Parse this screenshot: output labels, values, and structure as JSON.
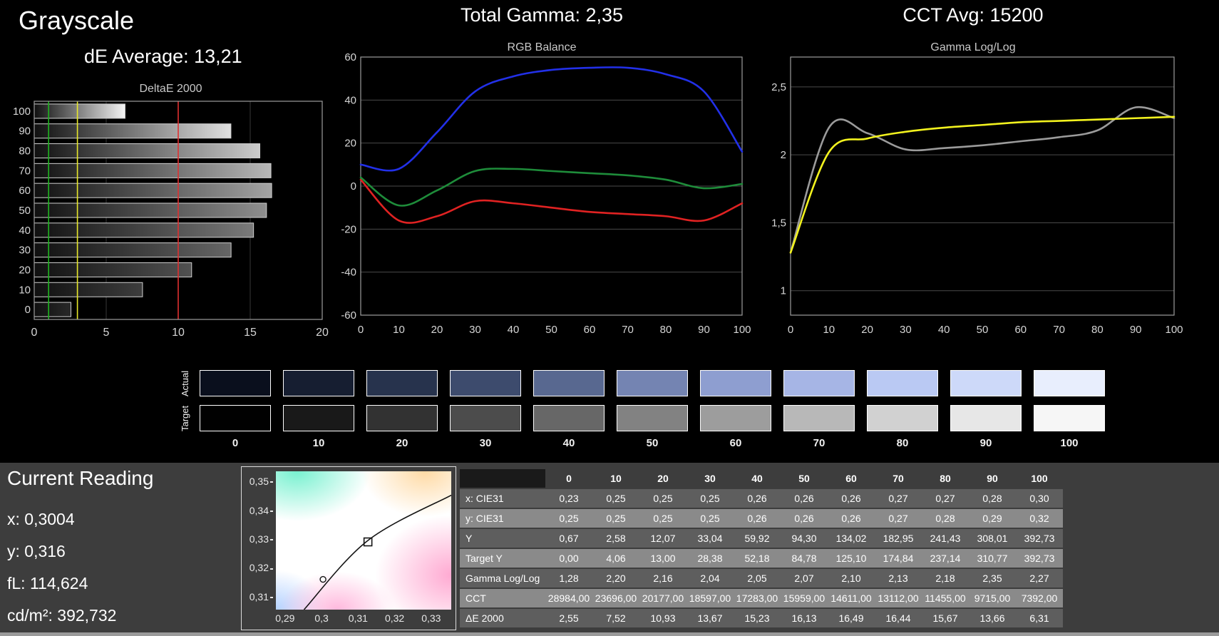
{
  "header": {
    "title": "Grayscale",
    "de_average": "dE Average: 13,21",
    "total_gamma": "Total Gamma: 2,35",
    "cct_avg": "CCT Avg: 15200"
  },
  "chart_data": [
    {
      "id": "deltae",
      "type": "bar",
      "orientation": "horizontal",
      "title": "DeltaE 2000",
      "categories": [
        100,
        90,
        80,
        70,
        60,
        50,
        40,
        30,
        20,
        10,
        0
      ],
      "values": [
        6.31,
        13.66,
        15.67,
        16.44,
        16.49,
        16.13,
        15.23,
        13.67,
        10.93,
        7.52,
        2.55
      ],
      "xlim": [
        0,
        20
      ],
      "xticks": [
        0,
        5,
        10,
        15,
        20
      ],
      "reference_lines": [
        {
          "x": 1,
          "color": "#1fb41f"
        },
        {
          "x": 3,
          "color": "#e8e82a"
        },
        {
          "x": 10,
          "color": "#e03030"
        }
      ]
    },
    {
      "id": "rgb",
      "type": "line",
      "title": "RGB Balance",
      "x": [
        0,
        10,
        20,
        30,
        40,
        50,
        60,
        70,
        80,
        90,
        100
      ],
      "ylim": [
        -60,
        60
      ],
      "yticks": [
        -60,
        -40,
        -20,
        0,
        20,
        40,
        60
      ],
      "series": [
        {
          "name": "red",
          "color": "#e02222",
          "values": [
            3,
            -16,
            -14,
            -7,
            -8,
            -10,
            -12,
            -13,
            -14,
            -16,
            -8
          ]
        },
        {
          "name": "green",
          "color": "#1e8c3a",
          "values": [
            4,
            -9,
            -2,
            7,
            8,
            7,
            6,
            5,
            3,
            -1,
            1
          ]
        },
        {
          "name": "blue",
          "color": "#2230e8",
          "values": [
            10,
            8,
            25,
            44,
            51,
            54,
            55,
            55,
            52,
            44,
            16
          ]
        }
      ]
    },
    {
      "id": "gamma",
      "type": "line",
      "title": "Gamma Log/Log",
      "x": [
        0,
        10,
        20,
        30,
        40,
        50,
        60,
        70,
        80,
        90,
        100
      ],
      "ylim": [
        0.82,
        2.72
      ],
      "yticks": [
        1,
        1.5,
        2,
        2.5
      ],
      "ytick_labels": [
        "1",
        "1,5",
        "2",
        "2,5"
      ],
      "series": [
        {
          "name": "measured",
          "color": "#9b9b9b",
          "values": [
            1.28,
            2.2,
            2.16,
            2.04,
            2.05,
            2.07,
            2.1,
            2.13,
            2.18,
            2.35,
            2.27
          ]
        },
        {
          "name": "target",
          "color": "#f2f21e",
          "values": [
            1.28,
            2.02,
            2.12,
            2.17,
            2.2,
            2.22,
            2.24,
            2.25,
            2.26,
            2.27,
            2.28
          ]
        }
      ]
    },
    {
      "id": "cie",
      "type": "scatter",
      "title": "CIE chromaticity",
      "xlim": [
        0.2875,
        0.3355
      ],
      "ylim": [
        0.3055,
        0.3535
      ],
      "xticks": [
        0.29,
        0.3,
        0.31,
        0.32,
        0.33
      ],
      "xtick_labels": [
        "0,29",
        "0,3",
        "0,31",
        "0,32",
        "0,33"
      ],
      "yticks": [
        0.31,
        0.32,
        0.33,
        0.34,
        0.35
      ],
      "ytick_labels": [
        "0,31",
        "0,32",
        "0,33",
        "0,34",
        "0,35"
      ],
      "locus": [
        [
          0.2952,
          0.3055
        ],
        [
          0.3127,
          0.3295
        ],
        [
          0.3355,
          0.3452
        ]
      ],
      "points": [
        {
          "shape": "square",
          "x": 0.3127,
          "y": 0.329,
          "label": "target white point"
        },
        {
          "shape": "circle",
          "x": 0.3004,
          "y": 0.316,
          "label": "measured white point"
        }
      ]
    }
  ],
  "swatches": {
    "row_labels": [
      "Actual",
      "Target"
    ],
    "labels": [
      "0",
      "10",
      "20",
      "30",
      "40",
      "50",
      "60",
      "70",
      "80",
      "90",
      "100"
    ],
    "actual_colors": [
      "#0a0f1d",
      "#161e31",
      "#27334d",
      "#3d4b6d",
      "#586890",
      "#7484b2",
      "#8e9ed0",
      "#a6b5e5",
      "#bac9f3",
      "#cdd9f9",
      "#e8eefd"
    ],
    "target_colors": [
      "#010101",
      "#191919",
      "#323232",
      "#4c4c4c",
      "#676767",
      "#828282",
      "#9d9d9d",
      "#b8b8b8",
      "#d1d1d1",
      "#e7e7e7",
      "#f6f6f6"
    ]
  },
  "current_reading": {
    "title": "Current Reading",
    "lines": [
      "x: 0,3004",
      "y: 0,316",
      "fL: 114,624",
      "cd/m²: 392,732"
    ]
  },
  "table": {
    "columns": [
      "",
      "0",
      "10",
      "20",
      "30",
      "40",
      "50",
      "60",
      "70",
      "80",
      "90",
      "100"
    ],
    "rows": [
      {
        "label": "x: CIE31",
        "values": [
          "0,23",
          "0,25",
          "0,25",
          "0,25",
          "0,26",
          "0,26",
          "0,26",
          "0,27",
          "0,27",
          "0,28",
          "0,30"
        ]
      },
      {
        "label": "y: CIE31",
        "values": [
          "0,25",
          "0,25",
          "0,25",
          "0,25",
          "0,26",
          "0,26",
          "0,26",
          "0,27",
          "0,28",
          "0,29",
          "0,32"
        ]
      },
      {
        "label": "Y",
        "values": [
          "0,67",
          "2,58",
          "12,07",
          "33,04",
          "59,92",
          "94,30",
          "134,02",
          "182,95",
          "241,43",
          "308,01",
          "392,73"
        ]
      },
      {
        "label": "Target Y",
        "values": [
          "0,00",
          "4,06",
          "13,00",
          "28,38",
          "52,18",
          "84,78",
          "125,10",
          "174,84",
          "237,14",
          "310,77",
          "392,73"
        ]
      },
      {
        "label": "Gamma Log/Log",
        "values": [
          "1,28",
          "2,20",
          "2,16",
          "2,04",
          "2,05",
          "2,07",
          "2,10",
          "2,13",
          "2,18",
          "2,35",
          "2,27"
        ]
      },
      {
        "label": "CCT",
        "values": [
          "28984,00",
          "23696,00",
          "20177,00",
          "18597,00",
          "17283,00",
          "15959,00",
          "14611,00",
          "13112,00",
          "11455,00",
          "9715,00",
          "7392,00"
        ]
      },
      {
        "label": "ΔE 2000",
        "values": [
          "2,55",
          "7,52",
          "10,93",
          "13,67",
          "15,23",
          "16,13",
          "16,49",
          "16,44",
          "15,67",
          "13,66",
          "6,31"
        ]
      }
    ]
  },
  "colors": {
    "background": "#000000",
    "bottom_panel": "#3d3d3d",
    "text": "#ffffff"
  }
}
